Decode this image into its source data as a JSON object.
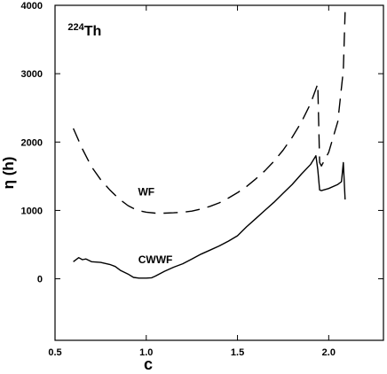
{
  "chart_data": {
    "type": "line",
    "title": "",
    "xlabel": "c",
    "ylabel": "η (h)",
    "xlim": [
      0.5,
      2.3
    ],
    "ylim": [
      -900,
      4000
    ],
    "xticks": [
      0.5,
      1.0,
      1.5,
      2.0
    ],
    "xtick_labels": [
      "0.5",
      "1.0",
      "1.5",
      "2.0"
    ],
    "yticks": [
      0,
      1000,
      2000,
      3000,
      4000
    ],
    "ytick_labels": [
      "0",
      "1000",
      "2000",
      "3000",
      "4000"
    ],
    "grid": false,
    "legend": "none",
    "annotations": [
      {
        "id": "nucleus",
        "sup": "224",
        "text": "Th",
        "x": 0.57,
        "y": 3560
      },
      {
        "id": "wf",
        "text": "WF",
        "x": 1.0,
        "y": 1220
      },
      {
        "id": "cwwf",
        "text": "CWWF",
        "x": 1.05,
        "y": 230
      }
    ],
    "series": [
      {
        "label": "WF",
        "style": "dashed",
        "x": [
          0.6,
          0.65,
          0.7,
          0.75,
          0.8,
          0.85,
          0.9,
          0.95,
          1.0,
          1.05,
          1.1,
          1.15,
          1.2,
          1.25,
          1.3,
          1.35,
          1.4,
          1.45,
          1.5,
          1.55,
          1.6,
          1.65,
          1.7,
          1.75,
          1.8,
          1.85,
          1.9,
          1.94,
          1.95,
          1.96,
          2.0,
          2.05,
          2.08,
          2.09
        ],
        "y": [
          2200,
          1900,
          1640,
          1450,
          1300,
          1170,
          1070,
          1000,
          975,
          960,
          960,
          965,
          975,
          990,
          1020,
          1060,
          1110,
          1180,
          1260,
          1350,
          1460,
          1580,
          1720,
          1880,
          2070,
          2290,
          2560,
          2850,
          1700,
          1650,
          1850,
          2300,
          3050,
          3900
        ]
      },
      {
        "label": "CWWF",
        "style": "solid",
        "x": [
          0.6,
          0.63,
          0.65,
          0.67,
          0.7,
          0.75,
          0.8,
          0.83,
          0.86,
          0.9,
          0.93,
          0.96,
          1.0,
          1.03,
          1.05,
          1.1,
          1.15,
          1.2,
          1.25,
          1.3,
          1.35,
          1.4,
          1.45,
          1.5,
          1.55,
          1.6,
          1.65,
          1.7,
          1.75,
          1.8,
          1.85,
          1.9,
          1.93,
          1.94,
          1.95,
          1.96,
          2.0,
          2.05,
          2.07,
          2.08,
          2.09
        ],
        "y": [
          250,
          310,
          280,
          290,
          250,
          240,
          210,
          180,
          120,
          70,
          20,
          10,
          10,
          15,
          40,
          110,
          170,
          220,
          290,
          360,
          420,
          480,
          550,
          630,
          760,
          880,
          1000,
          1120,
          1250,
          1380,
          1530,
          1670,
          1800,
          1600,
          1300,
          1290,
          1320,
          1380,
          1420,
          1700,
          1160
        ]
      }
    ]
  }
}
